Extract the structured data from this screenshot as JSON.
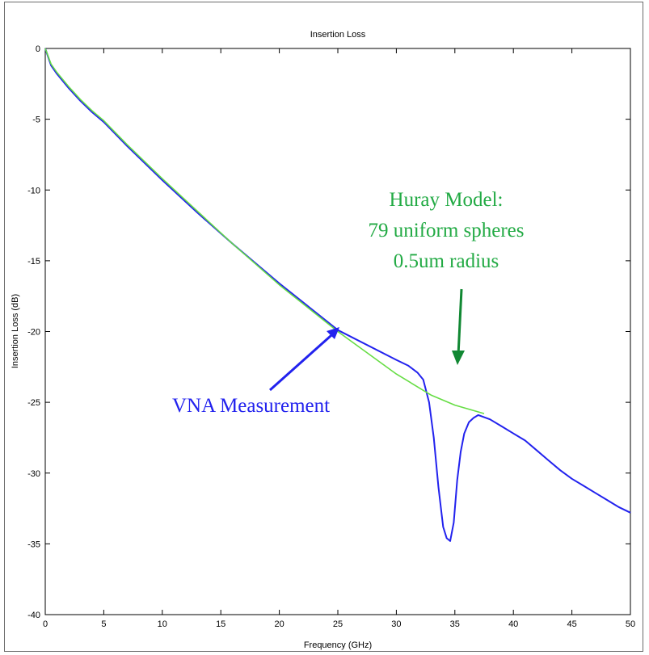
{
  "chart_data": {
    "type": "line",
    "title": "Insertion Loss",
    "xlabel": "Frequency (GHz)",
    "ylabel": "Insertion Loss (dB)",
    "xlim": [
      0,
      50
    ],
    "ylim": [
      -40,
      0
    ],
    "x_ticks": [
      0,
      5,
      10,
      15,
      20,
      25,
      30,
      35,
      40,
      45,
      50
    ],
    "y_ticks": [
      0,
      -5,
      -10,
      -15,
      -20,
      -25,
      -30,
      -35,
      -40
    ],
    "grid": false,
    "series": [
      {
        "name": "Huray Model",
        "color": "#66dd44",
        "x": [
          0,
          0.5,
          1,
          2,
          3,
          4,
          5,
          7,
          10,
          13,
          16,
          20,
          25,
          30,
          33,
          35,
          37.5
        ],
        "y": [
          0,
          -1.1,
          -1.7,
          -2.7,
          -3.6,
          -4.4,
          -5.1,
          -6.8,
          -9.2,
          -11.5,
          -13.8,
          -16.7,
          -20.0,
          -23.0,
          -24.5,
          -25.2,
          -25.8
        ]
      },
      {
        "name": "VNA Measurement",
        "color": "#2222ee",
        "x": [
          0,
          0.5,
          1,
          2,
          3,
          4,
          5,
          7,
          10,
          13,
          16,
          20,
          25,
          30,
          31,
          31.8,
          32.3,
          32.8,
          33.2,
          33.6,
          34.0,
          34.3,
          34.6,
          34.9,
          35.2,
          35.5,
          35.8,
          36.2,
          36.6,
          37.0,
          38,
          39,
          40,
          41,
          42,
          43,
          44,
          45,
          46,
          47,
          48,
          49,
          50
        ],
        "y": [
          0,
          -1.2,
          -1.8,
          -2.8,
          -3.7,
          -4.5,
          -5.2,
          -6.9,
          -9.3,
          -11.6,
          -13.8,
          -16.6,
          -19.9,
          -22.0,
          -22.4,
          -22.9,
          -23.4,
          -25.0,
          -27.5,
          -31.0,
          -33.8,
          -34.6,
          -34.8,
          -33.5,
          -30.5,
          -28.5,
          -27.2,
          -26.4,
          -26.1,
          -25.9,
          -26.2,
          -26.7,
          -27.2,
          -27.7,
          -28.4,
          -29.1,
          -29.8,
          -30.4,
          -30.9,
          -31.4,
          -31.9,
          -32.4,
          -32.8
        ]
      }
    ],
    "annotations": [
      {
        "lines": [
          "VNA Measurement"
        ],
        "color": "#2222ee"
      },
      {
        "lines": [
          "Huray Model:",
          "79 uniform spheres",
          "0.5um radius"
        ],
        "color": "#22aa44"
      }
    ]
  }
}
